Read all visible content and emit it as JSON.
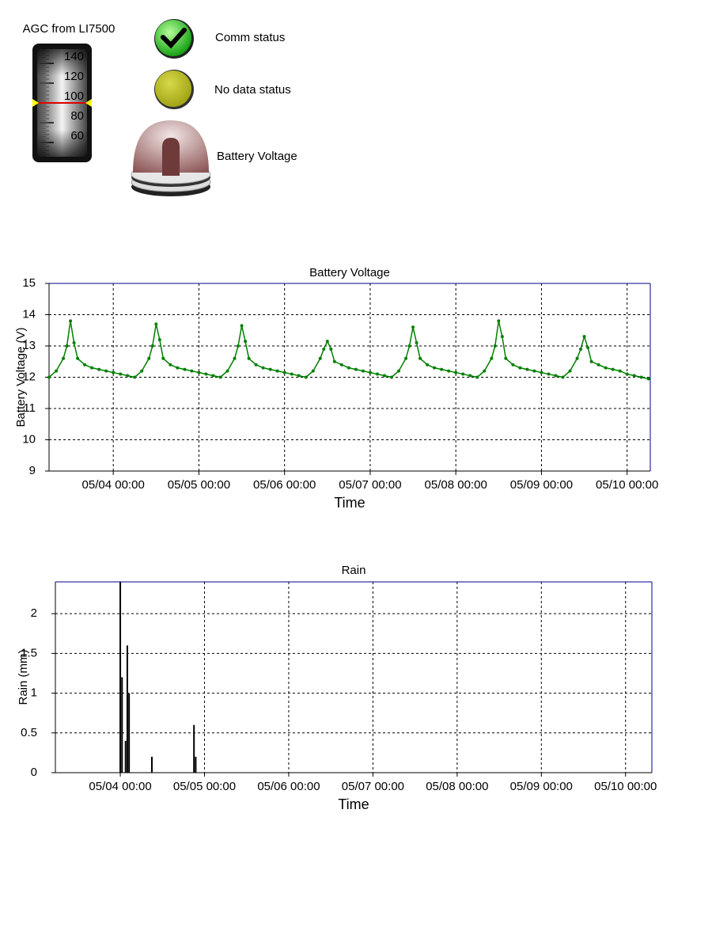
{
  "gauge": {
    "title": "AGC from LI7500",
    "value": 100,
    "ticks": [
      60,
      80,
      100,
      120,
      140
    ]
  },
  "status": [
    {
      "label": "Comm status"
    },
    {
      "label": "No data status"
    },
    {
      "label": "Battery Voltage"
    }
  ],
  "chart_data": [
    {
      "type": "line",
      "title": "Battery Voltage",
      "ylabel": "Battery Voltage (V)",
      "xlabel": "Time",
      "color": "#008000",
      "grid": true,
      "xlim": [
        "05/03 06:00",
        "05/10 06:30"
      ],
      "xticks": [
        "05/04 00:00",
        "05/05 00:00",
        "05/06 00:00",
        "05/07 00:00",
        "05/08 00:00",
        "05/09 00:00",
        "05/10 00:00"
      ],
      "ylim": [
        9,
        15
      ],
      "yticks": [
        9,
        10,
        11,
        12,
        13,
        14,
        15
      ],
      "x": [
        "05/03 06:00",
        "05/03 08:00",
        "05/03 10:00",
        "05/03 11:00",
        "05/03 12:00",
        "05/03 13:00",
        "05/03 14:00",
        "05/03 16:00",
        "05/03 18:00",
        "05/03 20:00",
        "05/03 22:00",
        "05/04 00:00",
        "05/04 02:00",
        "05/04 04:00",
        "05/04 06:00",
        "05/04 08:00",
        "05/04 10:00",
        "05/04 11:00",
        "05/04 12:00",
        "05/04 13:00",
        "05/04 14:00",
        "05/04 16:00",
        "05/04 18:00",
        "05/04 20:00",
        "05/04 22:00",
        "05/05 00:00",
        "05/05 02:00",
        "05/05 04:00",
        "05/05 06:00",
        "05/05 08:00",
        "05/05 10:00",
        "05/05 11:00",
        "05/05 12:00",
        "05/05 13:00",
        "05/05 14:00",
        "05/05 16:00",
        "05/05 18:00",
        "05/05 20:00",
        "05/05 22:00",
        "05/06 00:00",
        "05/06 02:00",
        "05/06 04:00",
        "05/06 06:00",
        "05/06 08:00",
        "05/06 10:00",
        "05/06 11:00",
        "05/06 12:00",
        "05/06 13:00",
        "05/06 14:00",
        "05/06 16:00",
        "05/06 18:00",
        "05/06 20:00",
        "05/06 22:00",
        "05/07 00:00",
        "05/07 02:00",
        "05/07 04:00",
        "05/07 06:00",
        "05/07 08:00",
        "05/07 10:00",
        "05/07 11:00",
        "05/07 12:00",
        "05/07 13:00",
        "05/07 14:00",
        "05/07 16:00",
        "05/07 18:00",
        "05/07 20:00",
        "05/07 22:00",
        "05/08 00:00",
        "05/08 02:00",
        "05/08 04:00",
        "05/08 06:00",
        "05/08 08:00",
        "05/08 10:00",
        "05/08 11:00",
        "05/08 12:00",
        "05/08 13:00",
        "05/08 14:00",
        "05/08 16:00",
        "05/08 18:00",
        "05/08 20:00",
        "05/08 22:00",
        "05/09 00:00",
        "05/09 02:00",
        "05/09 04:00",
        "05/09 06:00",
        "05/09 08:00",
        "05/09 10:00",
        "05/09 11:00",
        "05/09 12:00",
        "05/09 13:00",
        "05/09 14:00",
        "05/09 16:00",
        "05/09 18:00",
        "05/09 20:00",
        "05/09 22:00",
        "05/10 00:00",
        "05/10 02:00",
        "05/10 04:00",
        "05/10 06:00"
      ],
      "values": [
        12.0,
        12.2,
        12.6,
        13.0,
        13.8,
        13.1,
        12.6,
        12.4,
        12.3,
        12.25,
        12.2,
        12.15,
        12.1,
        12.05,
        12.0,
        12.2,
        12.6,
        13.0,
        13.7,
        13.2,
        12.6,
        12.4,
        12.3,
        12.25,
        12.2,
        12.15,
        12.1,
        12.05,
        12.0,
        12.2,
        12.6,
        13.0,
        13.65,
        13.15,
        12.6,
        12.4,
        12.3,
        12.25,
        12.2,
        12.15,
        12.1,
        12.05,
        12.0,
        12.2,
        12.6,
        12.9,
        13.15,
        12.9,
        12.5,
        12.4,
        12.3,
        12.25,
        12.2,
        12.15,
        12.1,
        12.05,
        12.0,
        12.2,
        12.6,
        13.0,
        13.6,
        13.1,
        12.6,
        12.4,
        12.3,
        12.25,
        12.2,
        12.15,
        12.1,
        12.05,
        12.0,
        12.2,
        12.6,
        13.0,
        13.8,
        13.3,
        12.6,
        12.4,
        12.3,
        12.25,
        12.2,
        12.15,
        12.1,
        12.05,
        12.0,
        12.2,
        12.6,
        12.9,
        13.3,
        12.95,
        12.5,
        12.4,
        12.3,
        12.25,
        12.2,
        12.1,
        12.05,
        12.0,
        11.95
      ]
    },
    {
      "type": "bar",
      "title": "Rain",
      "ylabel": "Rain (mm)",
      "xlabel": "Time",
      "color": "#000000",
      "grid": true,
      "xlim": [
        "05/03 05:30",
        "05/10 07:30"
      ],
      "xticks": [
        "05/04 00:00",
        "05/05 00:00",
        "05/06 00:00",
        "05/07 00:00",
        "05/08 00:00",
        "05/09 00:00",
        "05/10 00:00"
      ],
      "ylim": [
        0,
        2.4
      ],
      "yticks": [
        0,
        0.5,
        1,
        1.5,
        2
      ],
      "x": [
        "05/04 00:00",
        "05/04 00:30",
        "05/04 01:30",
        "05/04 02:00",
        "05/04 02:30",
        "05/04 09:00",
        "05/04 21:00",
        "05/04 21:30"
      ],
      "values": [
        2.4,
        1.2,
        0.4,
        1.6,
        1.0,
        0.2,
        0.6,
        0.2
      ]
    }
  ]
}
